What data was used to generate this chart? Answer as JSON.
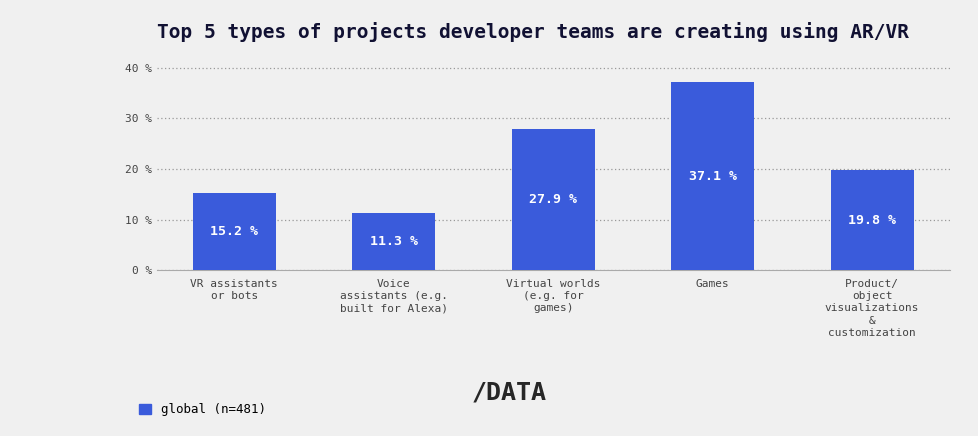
{
  "title": "Top 5 types of projects developer teams are creating using AR/VR",
  "categories": [
    "VR assistants\nor bots",
    "Voice\nassistants (e.g.\nbuilt for Alexa)",
    "Virtual worlds\n(e.g. for\ngames)",
    "Games",
    "Product/\nobject\nvisualizations\n&\ncustomization"
  ],
  "values": [
    15.2,
    11.3,
    27.9,
    37.1,
    19.8
  ],
  "bar_color": "#3a5bdb",
  "background_color": "#f0f0f0",
  "yticks": [
    0,
    10,
    20,
    30,
    40
  ],
  "ytick_labels": [
    "0 %",
    "10 %",
    "20 %",
    "30 %",
    "40 %"
  ],
  "ylim": [
    0,
    43
  ],
  "legend_label": "global (n=481)",
  "title_fontsize": 14,
  "bar_label_fontsize": 9.5,
  "tick_label_fontsize": 8,
  "legend_fontsize": 9,
  "title_color": "#111133",
  "bar_label_color": "#ffffff",
  "tick_color": "#444444",
  "grid_color": "#999999",
  "watermark_text": "/DATA",
  "watermark_fontsize": 18
}
